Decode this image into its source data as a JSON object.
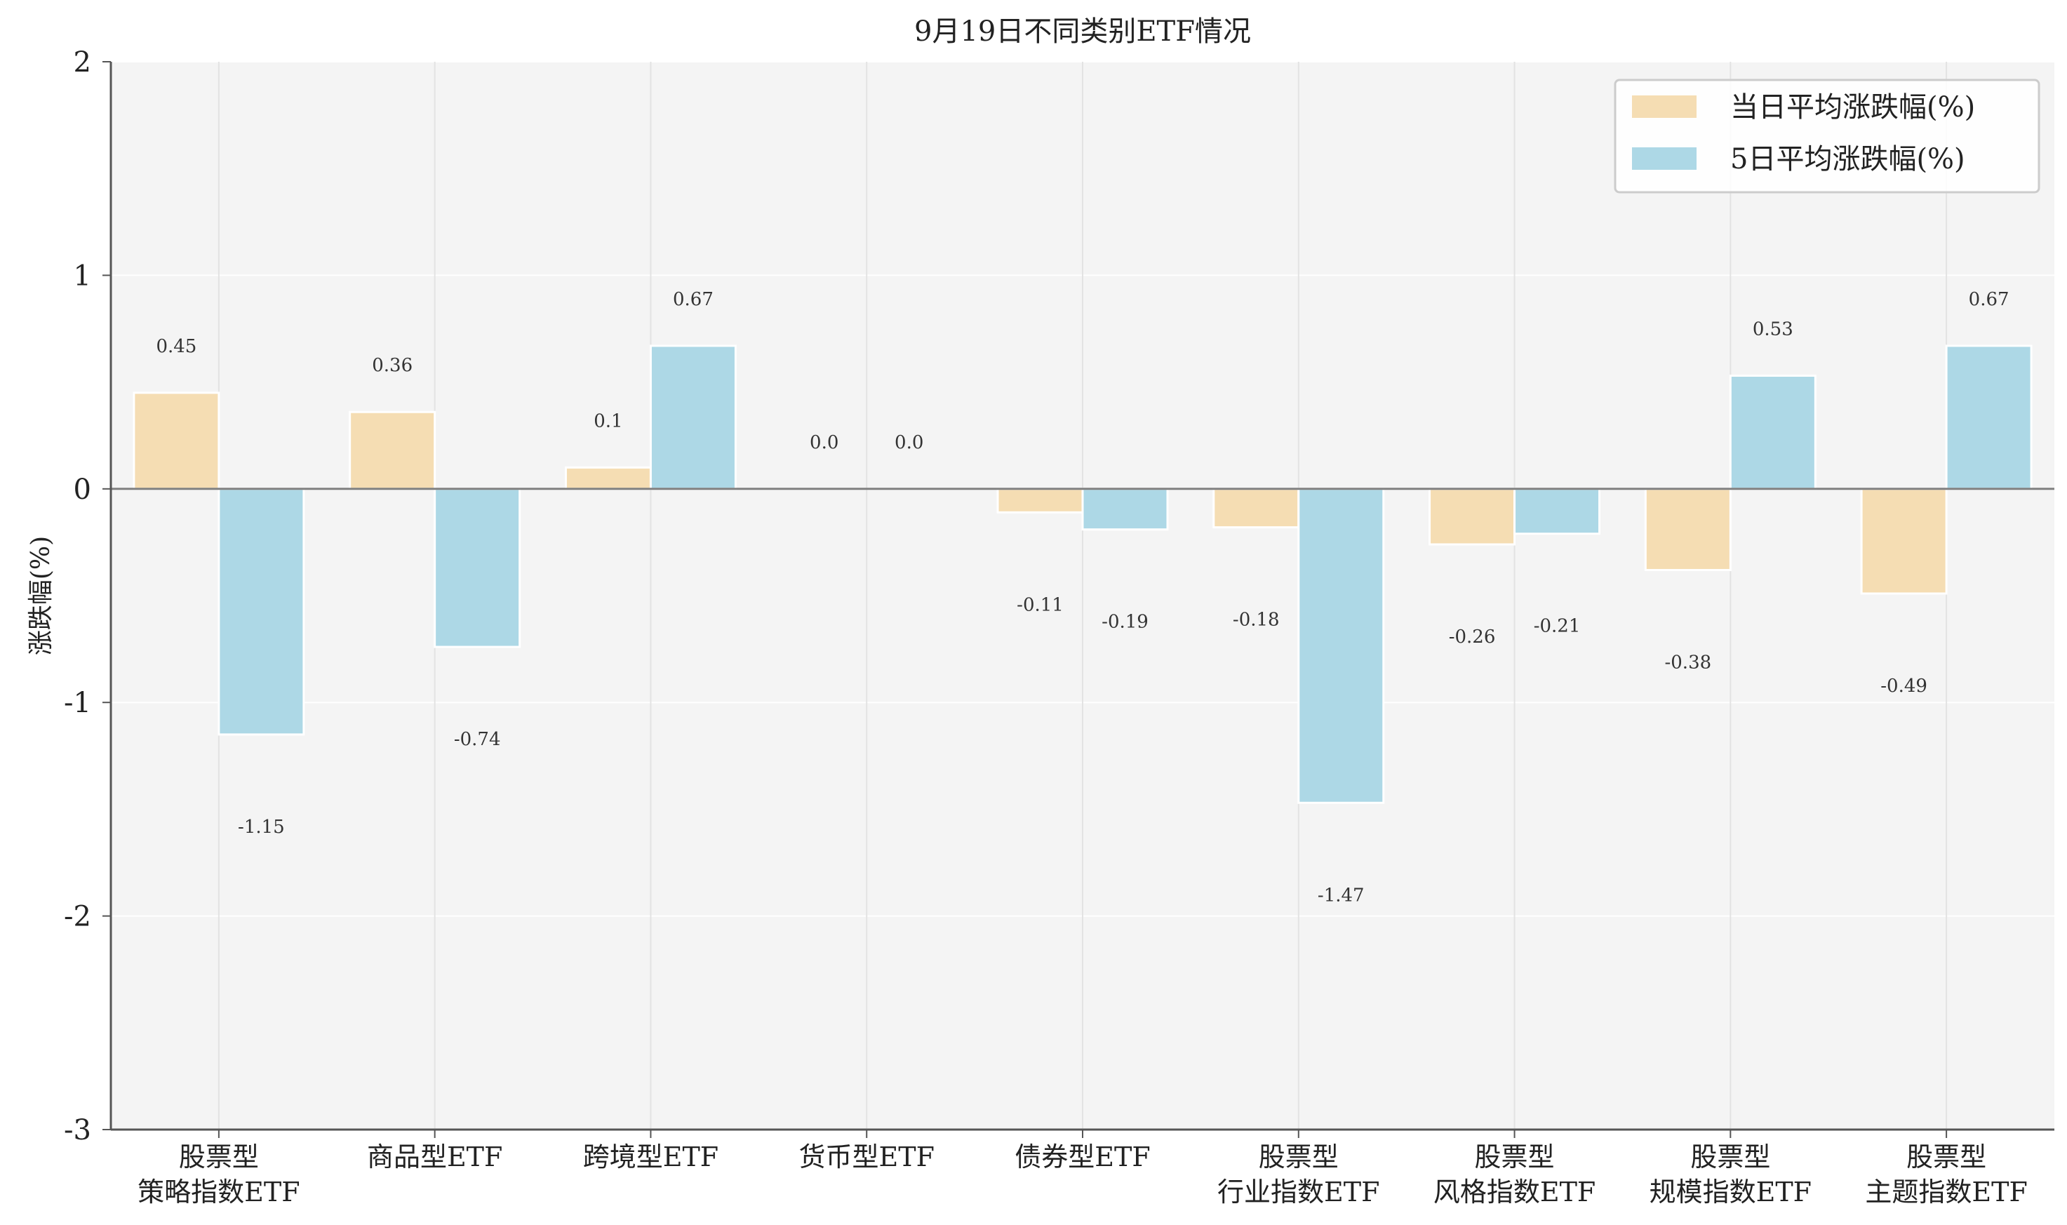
{
  "chart_data": {
    "type": "bar",
    "title": "9月19日不同类别ETF情况",
    "xlabel": "",
    "ylabel": "涨跌幅(%)",
    "ylim": [
      -3,
      2
    ],
    "yticks": [
      2,
      1,
      0,
      -1,
      -2,
      -3
    ],
    "grid": true,
    "legend_position": "top-right",
    "categories": [
      [
        "股票型",
        "策略指数ETF"
      ],
      [
        "商品型ETF"
      ],
      [
        "跨境型ETF"
      ],
      [
        "货币型ETF"
      ],
      [
        "债券型ETF"
      ],
      [
        "股票型",
        "行业指数ETF"
      ],
      [
        "股票型",
        "风格指数ETF"
      ],
      [
        "股票型",
        "规模指数ETF"
      ],
      [
        "股票型",
        "主题指数ETF"
      ]
    ],
    "series": [
      {
        "name": "当日平均涨跌幅(%)",
        "color": "#f5ddb3",
        "values": [
          0.45,
          0.36,
          0.1,
          0.0,
          -0.11,
          -0.18,
          -0.26,
          -0.38,
          -0.49
        ],
        "labels": [
          "0.45",
          "0.36",
          "0.1",
          "0.0",
          "-0.11",
          "-0.18",
          "-0.26",
          "-0.38",
          "-0.49"
        ]
      },
      {
        "name": "5日平均涨跌幅(%)",
        "color": "#add8e6",
        "values": [
          -1.15,
          -0.74,
          0.67,
          0.0,
          -0.19,
          -1.47,
          -0.21,
          0.53,
          0.67
        ],
        "labels": [
          "-1.15",
          "-0.74",
          "0.67",
          "0.0",
          "-0.19",
          "-1.47",
          "-0.21",
          "0.53",
          "0.67"
        ]
      }
    ]
  }
}
